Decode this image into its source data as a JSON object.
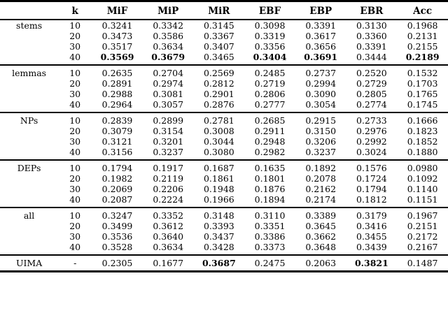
{
  "table": {
    "headers": [
      "",
      "k",
      "MiF",
      "MiP",
      "MiR",
      "EBF",
      "EBP",
      "EBR",
      "Acc"
    ],
    "groups": [
      {
        "label": "stems",
        "rows": [
          {
            "k": "10",
            "values": [
              "0.3241",
              "0.3342",
              "0.3145",
              "0.3098",
              "0.3391",
              "0.3130",
              "0.1968"
            ],
            "bold": []
          },
          {
            "k": "20",
            "values": [
              "0.3473",
              "0.3586",
              "0.3367",
              "0.3319",
              "0.3617",
              "0.3360",
              "0.2131"
            ],
            "bold": []
          },
          {
            "k": "30",
            "values": [
              "0.3517",
              "0.3634",
              "0.3407",
              "0.3356",
              "0.3656",
              "0.3391",
              "0.2155"
            ],
            "bold": []
          },
          {
            "k": "40",
            "values": [
              "0.3569",
              "0.3679",
              "0.3465",
              "0.3404",
              "0.3691",
              "0.3444",
              "0.2189"
            ],
            "bold": [
              0,
              1,
              3,
              4,
              6
            ]
          }
        ]
      },
      {
        "label": "lemmas",
        "rows": [
          {
            "k": "10",
            "values": [
              "0.2635",
              "0.2704",
              "0.2569",
              "0.2485",
              "0.2737",
              "0.2520",
              "0.1532"
            ],
            "bold": []
          },
          {
            "k": "20",
            "values": [
              "0.2891",
              "0.2974",
              "0.2812",
              "0.2719",
              "0.2994",
              "0.2729",
              "0.1703"
            ],
            "bold": []
          },
          {
            "k": "30",
            "values": [
              "0.2988",
              "0.3081",
              "0.2901",
              "0.2806",
              "0.3090",
              "0.2805",
              "0.1765"
            ],
            "bold": []
          },
          {
            "k": "40",
            "values": [
              "0.2964",
              "0.3057",
              "0.2876",
              "0.2777",
              "0.3054",
              "0.2774",
              "0.1745"
            ],
            "bold": []
          }
        ]
      },
      {
        "label": "NPs",
        "rows": [
          {
            "k": "10",
            "values": [
              "0.2839",
              "0.2899",
              "0.2781",
              "0.2685",
              "0.2915",
              "0.2733",
              "0.1666"
            ],
            "bold": []
          },
          {
            "k": "20",
            "values": [
              "0.3079",
              "0.3154",
              "0.3008",
              "0.2911",
              "0.3150",
              "0.2976",
              "0.1823"
            ],
            "bold": []
          },
          {
            "k": "30",
            "values": [
              "0.3121",
              "0.3201",
              "0.3044",
              "0.2948",
              "0.3206",
              "0.2992",
              "0.1852"
            ],
            "bold": []
          },
          {
            "k": "40",
            "values": [
              "0.3156",
              "0.3237",
              "0.3080",
              "0.2982",
              "0.3237",
              "0.3024",
              "0.1880"
            ],
            "bold": []
          }
        ]
      },
      {
        "label": "DEPs",
        "rows": [
          {
            "k": "10",
            "values": [
              "0.1794",
              "0.1917",
              "0.1687",
              "0.1635",
              "0.1892",
              "0.1576",
              "0.0980"
            ],
            "bold": []
          },
          {
            "k": "20",
            "values": [
              "0.1982",
              "0.2119",
              "0.1861",
              "0.1801",
              "0.2078",
              "0.1724",
              "0.1092"
            ],
            "bold": []
          },
          {
            "k": "30",
            "values": [
              "0.2069",
              "0.2206",
              "0.1948",
              "0.1876",
              "0.2162",
              "0.1794",
              "0.1140"
            ],
            "bold": []
          },
          {
            "k": "40",
            "values": [
              "0.2087",
              "0.2224",
              "0.1966",
              "0.1894",
              "0.2174",
              "0.1812",
              "0.1151"
            ],
            "bold": []
          }
        ]
      },
      {
        "label": "all",
        "rows": [
          {
            "k": "10",
            "values": [
              "0.3247",
              "0.3352",
              "0.3148",
              "0.3110",
              "0.3389",
              "0.3179",
              "0.1967"
            ],
            "bold": []
          },
          {
            "k": "20",
            "values": [
              "0.3499",
              "0.3612",
              "0.3393",
              "0.3351",
              "0.3645",
              "0.3416",
              "0.2151"
            ],
            "bold": []
          },
          {
            "k": "30",
            "values": [
              "0.3536",
              "0.3640",
              "0.3437",
              "0.3386",
              "0.3662",
              "0.3455",
              "0.2172"
            ],
            "bold": []
          },
          {
            "k": "40",
            "values": [
              "0.3528",
              "0.3634",
              "0.3428",
              "0.3373",
              "0.3648",
              "0.3439",
              "0.2167"
            ],
            "bold": []
          }
        ]
      },
      {
        "label": "UIMA",
        "rows": [
          {
            "k": "-",
            "values": [
              "0.2305",
              "0.1677",
              "0.3687",
              "0.2475",
              "0.2063",
              "0.3821",
              "0.1487"
            ],
            "bold": [
              2,
              5
            ]
          }
        ]
      }
    ]
  }
}
